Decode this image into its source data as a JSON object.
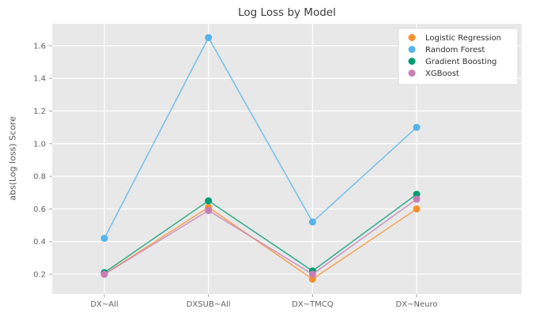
{
  "chart_data": {
    "type": "line",
    "title": "Log Loss by Model",
    "xlabel": "",
    "ylabel": "abs(Log loss) Score",
    "categories": [
      "DX~All",
      "DXSUB~All",
      "DX~TMCQ",
      "DX~Neuro"
    ],
    "series": [
      {
        "name": "Logistic Regression",
        "color": "#F5912D",
        "values": [
          0.2,
          0.61,
          0.17,
          0.6
        ]
      },
      {
        "name": "Random Forest",
        "color": "#56B4E9",
        "values": [
          0.42,
          1.65,
          0.52,
          1.1
        ]
      },
      {
        "name": "Gradient Boosting",
        "color": "#029E73",
        "values": [
          0.21,
          0.65,
          0.22,
          0.69
        ]
      },
      {
        "name": "XGBoost",
        "color": "#C77EB5",
        "values": [
          0.2,
          0.59,
          0.2,
          0.66
        ]
      }
    ],
    "yticks": [
      0.2,
      0.4,
      0.6,
      0.8,
      1.0,
      1.2,
      1.4,
      1.6
    ],
    "ylim": [
      0.08,
      1.74
    ],
    "grid": true,
    "legend_position": "upper right",
    "colors": {
      "plot_background": "#E8E8E8",
      "grid_line": "#FFFFFF",
      "tick_label": "#626262",
      "title_text": "#3a3a3a",
      "legend_text": "#2e2e2e",
      "legend_border": "#DBDBDB",
      "legend_background": "#FFFFFF"
    }
  }
}
